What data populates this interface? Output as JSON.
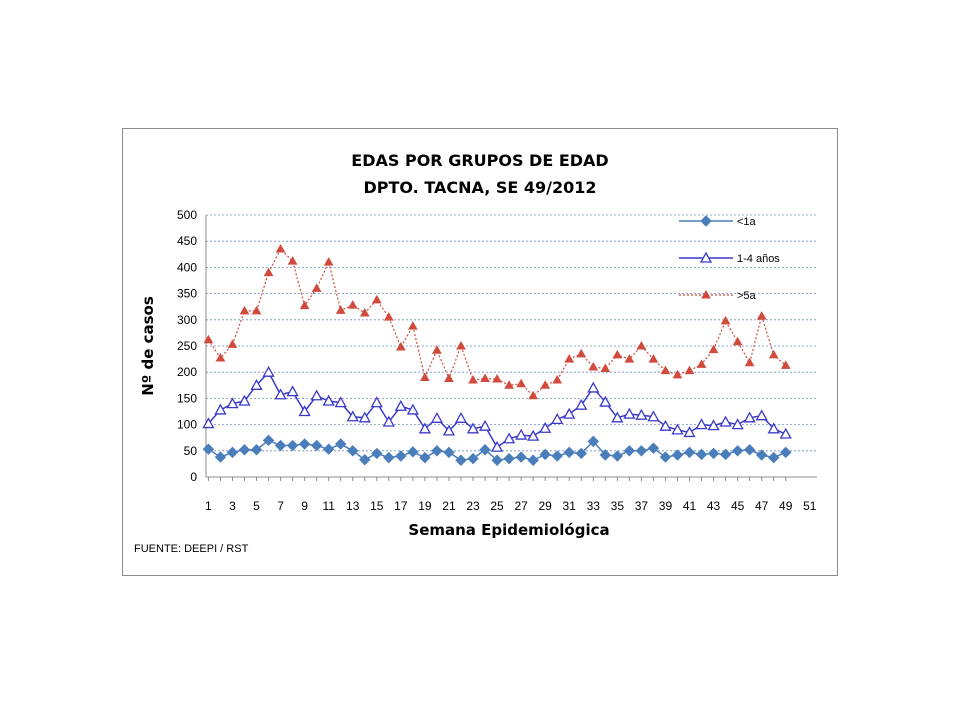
{
  "chart_data": {
    "type": "line",
    "title": [
      "EDAS POR GRUPOS DE EDAD",
      "DPTO. TACNA, SE  49/2012"
    ],
    "xlabel": "Semana Epidemiológica",
    "ylabel": "Nº de casos",
    "ylim": [
      0,
      500
    ],
    "yticks": [
      0,
      50,
      100,
      150,
      200,
      250,
      300,
      350,
      400,
      450,
      500
    ],
    "xlim": [
      1,
      51
    ],
    "xticks": [
      1,
      3,
      5,
      7,
      9,
      11,
      13,
      15,
      17,
      19,
      21,
      23,
      25,
      27,
      29,
      31,
      33,
      35,
      37,
      39,
      41,
      43,
      45,
      47,
      49,
      51
    ],
    "grid": "horizontal dashed",
    "legend_position": "top-right",
    "x": [
      1,
      2,
      3,
      4,
      5,
      6,
      7,
      8,
      9,
      10,
      11,
      12,
      13,
      14,
      15,
      16,
      17,
      18,
      19,
      20,
      21,
      22,
      23,
      24,
      25,
      26,
      27,
      28,
      29,
      30,
      31,
      32,
      33,
      34,
      35,
      36,
      37,
      38,
      39,
      40,
      41,
      42,
      43,
      44,
      45,
      46,
      47,
      48,
      49
    ],
    "series": [
      {
        "name": "<1a",
        "color": "#4a7ebb",
        "marker": "diamond",
        "values": [
          53,
          38,
          47,
          52,
          52,
          70,
          60,
          60,
          63,
          60,
          53,
          63,
          50,
          33,
          45,
          37,
          40,
          48,
          37,
          50,
          47,
          32,
          35,
          52,
          32,
          35,
          38,
          32,
          43,
          40,
          47,
          45,
          68,
          42,
          40,
          50,
          50,
          55,
          38,
          42,
          47,
          43,
          45,
          43,
          50,
          52,
          42,
          37,
          47
        ]
      },
      {
        "name": "1-4 años",
        "color": "#3a3ac8",
        "marker": "triangle-open",
        "values": [
          102,
          128,
          140,
          145,
          175,
          200,
          157,
          163,
          125,
          155,
          145,
          142,
          115,
          113,
          142,
          105,
          135,
          128,
          92,
          112,
          88,
          112,
          92,
          97,
          57,
          73,
          80,
          78,
          93,
          110,
          120,
          137,
          170,
          143,
          113,
          120,
          118,
          115,
          97,
          90,
          85,
          100,
          98,
          105,
          100,
          113,
          117,
          92,
          82
        ]
      },
      {
        "name": ">5a",
        "color": "#d14a3c",
        "marker": "triangle",
        "dash": "dotted",
        "values": [
          262,
          227,
          253,
          317,
          317,
          390,
          435,
          412,
          327,
          360,
          410,
          318,
          328,
          313,
          338,
          305,
          248,
          288,
          190,
          242,
          188,
          250,
          185,
          188,
          187,
          175,
          178,
          155,
          175,
          185,
          225,
          235,
          210,
          207,
          233,
          225,
          250,
          225,
          203,
          195,
          203,
          215,
          243,
          298,
          258,
          218,
          307,
          233,
          213
        ]
      }
    ]
  },
  "source_note": "FUENTE: DEEPI  / RST"
}
